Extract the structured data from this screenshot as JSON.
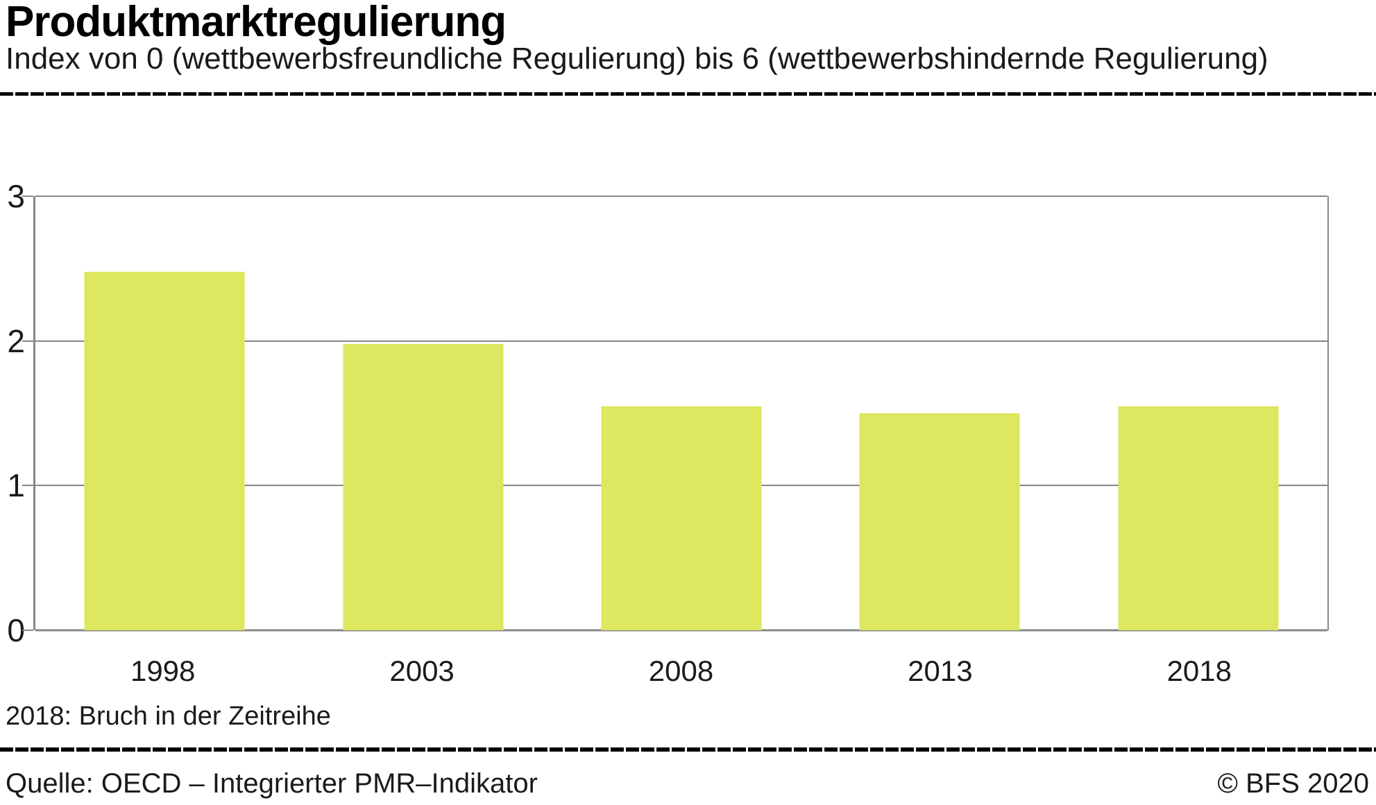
{
  "header": {
    "title": "Produktmarktregulierung",
    "subtitle": "Index von 0 (wettbewerbsfreundliche Regulierung) bis 6 (wettbewerbshindernde Regulierung)"
  },
  "chart_data": {
    "type": "bar",
    "categories": [
      "1998",
      "2003",
      "2008",
      "2013",
      "2018"
    ],
    "values": [
      2.48,
      1.98,
      1.55,
      1.5,
      1.55
    ],
    "title": "Produktmarktregulierung",
    "xlabel": "",
    "ylabel": "",
    "ylim": [
      0,
      3
    ],
    "yticks": [
      0,
      1,
      2,
      3
    ],
    "grid": true,
    "legend": "none",
    "bar_color": "#dde75f"
  },
  "footnote": "2018: Bruch in der Zeitreihe",
  "footer": {
    "source": "Quelle: OECD – Integrierter PMR–Indikator",
    "copyright": "© BFS 2020"
  },
  "colors": {
    "bar": "#dde75f",
    "grid": "#878787",
    "text": "#1a1a1a",
    "divider": "#000000"
  }
}
